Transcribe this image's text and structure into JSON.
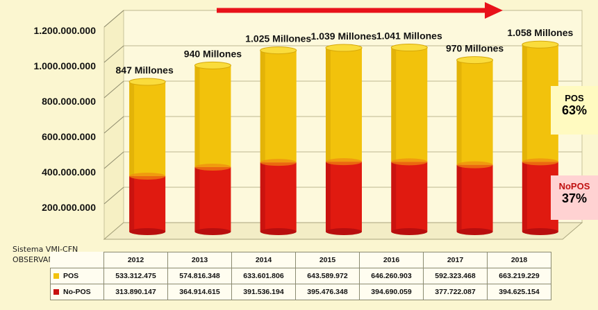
{
  "chart_data": {
    "type": "bar",
    "stacked": true,
    "categories": [
      "2012",
      "2013",
      "2014",
      "2015",
      "2016",
      "2017",
      "2018"
    ],
    "series": [
      {
        "name": "No-POS",
        "color": "#e01010",
        "values": [
          313890147,
          364914615,
          391536194,
          395476348,
          394690059,
          377722087,
          394625154
        ],
        "labels": [
          "313.890.147",
          "364.914.615",
          "391.536.194",
          "395.476.348",
          "394.690.059",
          "377.722.087",
          "394.625.154"
        ]
      },
      {
        "name": "POS",
        "color": "#f2c20c",
        "values": [
          533312475,
          574816348,
          633601806,
          643589972,
          646260903,
          592323468,
          663219229
        ],
        "labels": [
          "533.312.475",
          "574.816.348",
          "633.601.806",
          "643.589.972",
          "646.260.903",
          "592.323.468",
          "663.219.229"
        ]
      }
    ],
    "totals_labels": [
      "847 Millones",
      "940 Millones",
      "1.025 Millones",
      "1.039 Millones",
      "1.041 Millones",
      "970 Millones",
      "1.058 Millones"
    ],
    "yticks": [
      "1.200.000.000",
      "1.000.000.000",
      "800.000.000",
      "600.000.000",
      "400.000.000",
      "200.000.000"
    ],
    "ytick_values": [
      1200000000,
      1000000000,
      800000000,
      600000000,
      400000000,
      200000000
    ],
    "ylim": [
      0,
      1200000000
    ],
    "grid": true,
    "table": {
      "header_col_label": "",
      "row_labels": [
        "POS",
        "No-POS"
      ]
    },
    "annotations": {
      "pos_box": {
        "label": "POS",
        "percent": "63%",
        "color": "#fffac0"
      },
      "nopos_box": {
        "label": "NoPOS",
        "percent": "37%",
        "color": "#ffd2d2"
      },
      "trend_arrow": {
        "color": "#e8121a"
      }
    }
  },
  "source_note": {
    "line1": "Sistema VMI-CFN",
    "line2": "OBSERVAMED-FMC"
  }
}
